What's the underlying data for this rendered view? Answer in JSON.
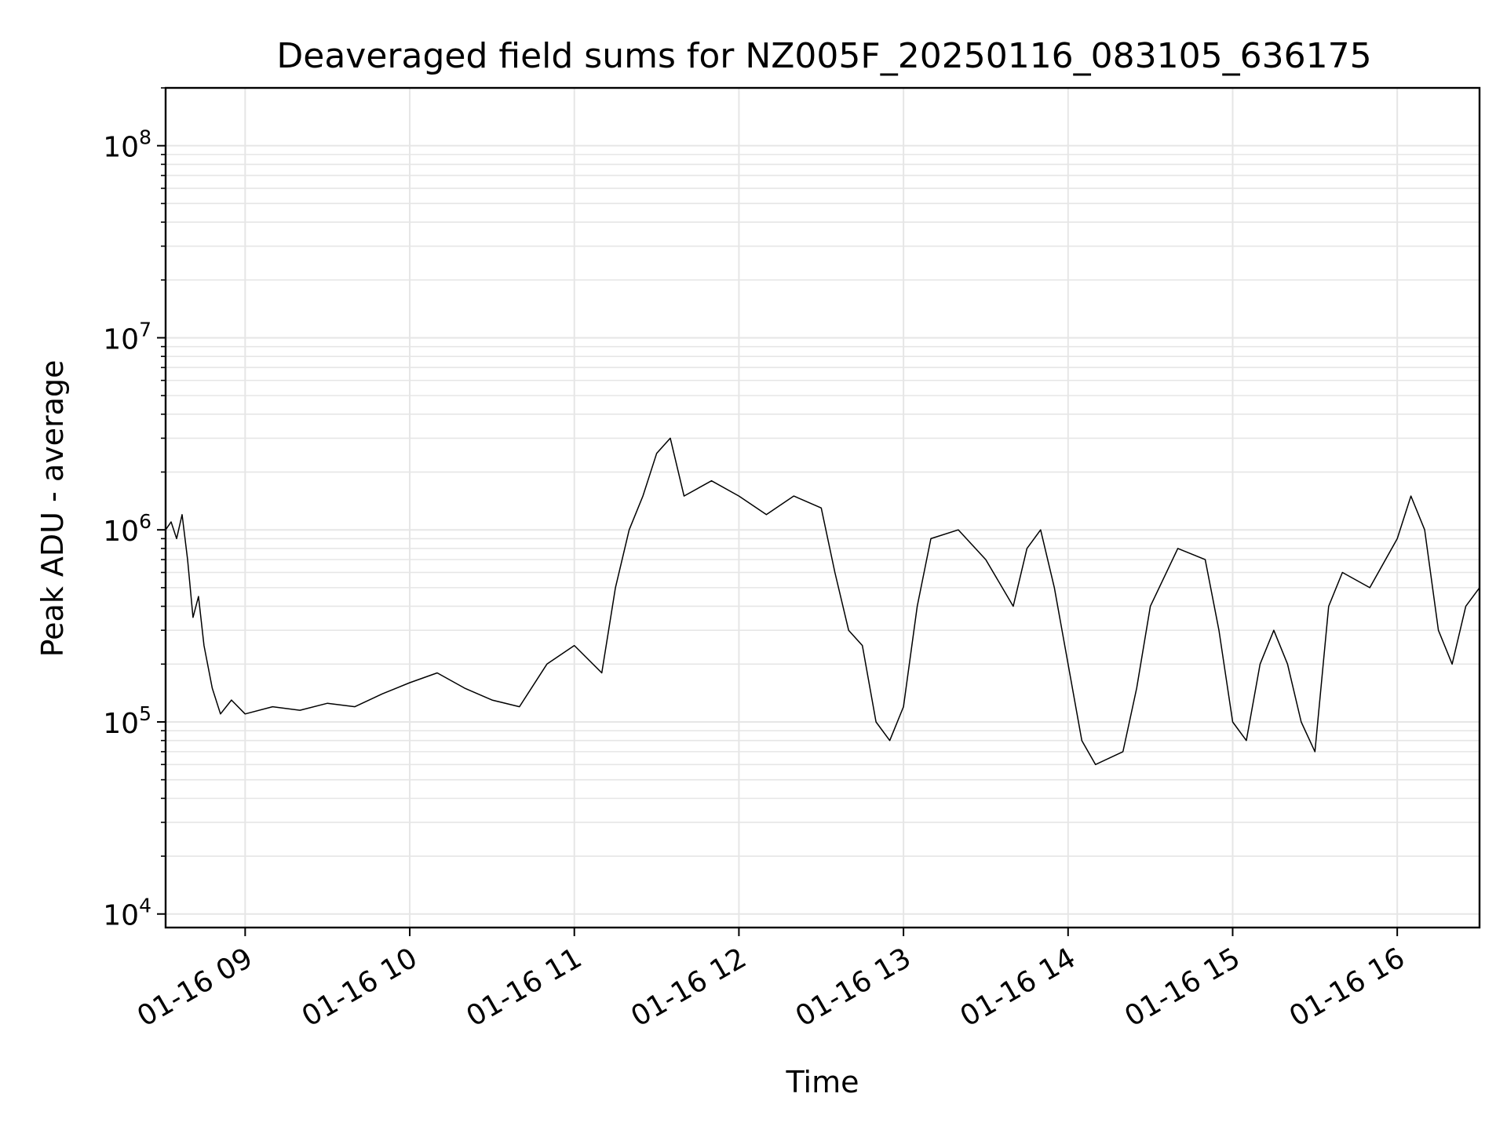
{
  "chart_data": {
    "type": "line",
    "title": "Deaveraged field sums for NZ005F_20250116_083105_636175",
    "xlabel": "Time",
    "ylabel": "Peak ADU - average",
    "y_scale": "log",
    "ylim": [
      8500,
      200000000
    ],
    "xlim": [
      "2025-01-16 08:31",
      "2025-01-16 16:30"
    ],
    "grid": true,
    "line_color": "#000000",
    "grid_color": "#e6e6e6",
    "x_ticks": [
      {
        "value": "2025-01-16 09:00",
        "label": "01-16 09"
      },
      {
        "value": "2025-01-16 10:00",
        "label": "01-16 10"
      },
      {
        "value": "2025-01-16 11:00",
        "label": "01-16 11"
      },
      {
        "value": "2025-01-16 12:00",
        "label": "01-16 12"
      },
      {
        "value": "2025-01-16 13:00",
        "label": "01-16 13"
      },
      {
        "value": "2025-01-16 14:00",
        "label": "01-16 14"
      },
      {
        "value": "2025-01-16 15:00",
        "label": "01-16 15"
      },
      {
        "value": "2025-01-16 16:00",
        "label": "01-16 16"
      }
    ],
    "y_ticks": [
      {
        "value": 10000,
        "base": "10",
        "exp": "4"
      },
      {
        "value": 100000,
        "base": "10",
        "exp": "5"
      },
      {
        "value": 1000000,
        "base": "10",
        "exp": "6"
      },
      {
        "value": 10000000,
        "base": "10",
        "exp": "7"
      },
      {
        "value": 100000000,
        "base": "10",
        "exp": "8"
      }
    ],
    "series": [
      {
        "points": [
          [
            "2025-01-16 08:31",
            1000000
          ],
          [
            "2025-01-16 08:33",
            1100000
          ],
          [
            "2025-01-16 08:35",
            900000
          ],
          [
            "2025-01-16 08:37",
            1200000
          ],
          [
            "2025-01-16 08:39",
            700000
          ],
          [
            "2025-01-16 08:41",
            350000
          ],
          [
            "2025-01-16 08:43",
            450000
          ],
          [
            "2025-01-16 08:45",
            250000
          ],
          [
            "2025-01-16 08:48",
            150000
          ],
          [
            "2025-01-16 08:51",
            110000
          ],
          [
            "2025-01-16 08:55",
            130000
          ],
          [
            "2025-01-16 09:00",
            110000
          ],
          [
            "2025-01-16 09:10",
            120000
          ],
          [
            "2025-01-16 09:20",
            115000
          ],
          [
            "2025-01-16 09:30",
            125000
          ],
          [
            "2025-01-16 09:40",
            120000
          ],
          [
            "2025-01-16 09:50",
            140000
          ],
          [
            "2025-01-16 10:00",
            160000
          ],
          [
            "2025-01-16 10:10",
            180000
          ],
          [
            "2025-01-16 10:20",
            150000
          ],
          [
            "2025-01-16 10:30",
            130000
          ],
          [
            "2025-01-16 10:40",
            120000
          ],
          [
            "2025-01-16 10:50",
            200000
          ],
          [
            "2025-01-16 11:00",
            250000
          ],
          [
            "2025-01-16 11:10",
            180000
          ],
          [
            "2025-01-16 11:15",
            500000
          ],
          [
            "2025-01-16 11:20",
            1000000
          ],
          [
            "2025-01-16 11:25",
            1500000
          ],
          [
            "2025-01-16 11:30",
            2500000
          ],
          [
            "2025-01-16 11:35",
            3000000
          ],
          [
            "2025-01-16 11:40",
            1500000
          ],
          [
            "2025-01-16 11:50",
            1800000
          ],
          [
            "2025-01-16 12:00",
            1500000
          ],
          [
            "2025-01-16 12:10",
            1200000
          ],
          [
            "2025-01-16 12:20",
            1500000
          ],
          [
            "2025-01-16 12:30",
            1300000
          ],
          [
            "2025-01-16 12:35",
            600000
          ],
          [
            "2025-01-16 12:40",
            300000
          ],
          [
            "2025-01-16 12:45",
            250000
          ],
          [
            "2025-01-16 12:50",
            100000
          ],
          [
            "2025-01-16 12:55",
            80000
          ],
          [
            "2025-01-16 13:00",
            120000
          ],
          [
            "2025-01-16 13:05",
            400000
          ],
          [
            "2025-01-16 13:10",
            900000
          ],
          [
            "2025-01-16 13:20",
            1000000
          ],
          [
            "2025-01-16 13:30",
            700000
          ],
          [
            "2025-01-16 13:40",
            400000
          ],
          [
            "2025-01-16 13:45",
            800000
          ],
          [
            "2025-01-16 13:50",
            1000000
          ],
          [
            "2025-01-16 13:55",
            500000
          ],
          [
            "2025-01-16 14:00",
            200000
          ],
          [
            "2025-01-16 14:05",
            80000
          ],
          [
            "2025-01-16 14:10",
            60000
          ],
          [
            "2025-01-16 14:20",
            70000
          ],
          [
            "2025-01-16 14:25",
            150000
          ],
          [
            "2025-01-16 14:30",
            400000
          ],
          [
            "2025-01-16 14:40",
            800000
          ],
          [
            "2025-01-16 14:50",
            700000
          ],
          [
            "2025-01-16 14:55",
            300000
          ],
          [
            "2025-01-16 15:00",
            100000
          ],
          [
            "2025-01-16 15:05",
            80000
          ],
          [
            "2025-01-16 15:10",
            200000
          ],
          [
            "2025-01-16 15:15",
            300000
          ],
          [
            "2025-01-16 15:20",
            200000
          ],
          [
            "2025-01-16 15:25",
            100000
          ],
          [
            "2025-01-16 15:30",
            70000
          ],
          [
            "2025-01-16 15:35",
            400000
          ],
          [
            "2025-01-16 15:40",
            600000
          ],
          [
            "2025-01-16 15:50",
            500000
          ],
          [
            "2025-01-16 16:00",
            900000
          ],
          [
            "2025-01-16 16:05",
            1500000
          ],
          [
            "2025-01-16 16:10",
            1000000
          ],
          [
            "2025-01-16 16:15",
            300000
          ],
          [
            "2025-01-16 16:20",
            200000
          ],
          [
            "2025-01-16 16:25",
            400000
          ],
          [
            "2025-01-16 16:30",
            500000
          ]
        ]
      }
    ]
  }
}
